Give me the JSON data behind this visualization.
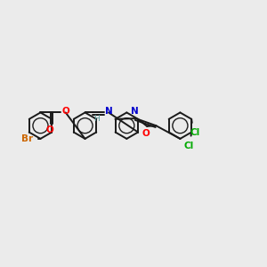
{
  "bg_color": "#ebebeb",
  "bond_color": "#1a1a1a",
  "bond_width": 1.4,
  "atom_colors": {
    "Br": "#cc6600",
    "O": "#ff0000",
    "N": "#0000cc",
    "Cl": "#00aa00",
    "C": "#1a1a1a",
    "H": "#5a9a9a"
  },
  "font_size": 7.5,
  "fig_width": 3.0,
  "fig_height": 3.0,
  "xlim": [
    0,
    10
  ],
  "ylim": [
    2,
    8
  ]
}
